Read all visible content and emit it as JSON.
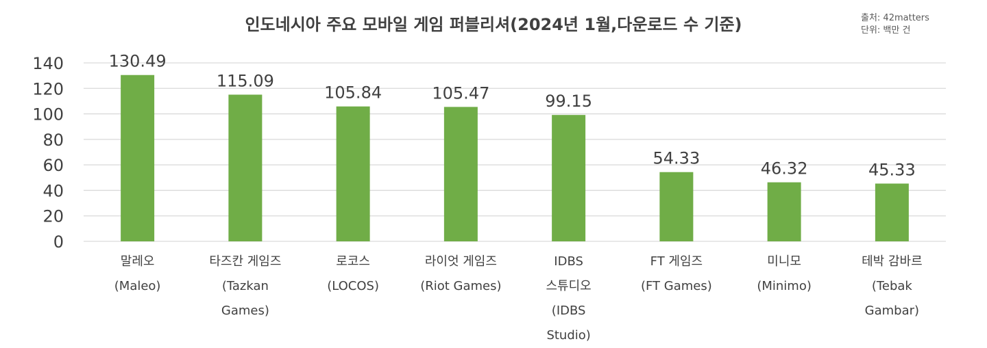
{
  "chart_data": {
    "type": "bar",
    "title": "인도네시아 주요 모바일 게임 퍼블리셔(2024년 1월,다운로드 수 기준)",
    "source_note": [
      "출처: 42matters",
      "단위: 백만 건"
    ],
    "categories": [
      [
        "말레오",
        "(Maleo)"
      ],
      [
        "타즈칸 게임즈",
        "(Tazkan",
        "Games)"
      ],
      [
        "로코스",
        "(LOCOS)"
      ],
      [
        "라이엇 게임즈",
        "(Riot Games)"
      ],
      [
        "IDBS",
        "스튜디오",
        "(IDBS",
        "Studio)"
      ],
      [
        "FT 게임즈",
        "(FT Games)"
      ],
      [
        "미니모",
        "(Minimo)"
      ],
      [
        "테박 감바르",
        "(Tebak",
        "Gambar)"
      ]
    ],
    "values": [
      130.49,
      115.09,
      105.84,
      105.47,
      99.15,
      54.33,
      46.32,
      45.33
    ],
    "value_labels": [
      "130.49",
      "115.09",
      "105.84",
      "105.47",
      "99.15",
      "54.33",
      "46.32",
      "45.33"
    ],
    "y_ticks": [
      "0",
      "20",
      "40",
      "60",
      "80",
      "100",
      "120",
      "140"
    ],
    "ylim": [
      0,
      140
    ],
    "grid": true,
    "bar_color": "#70AD47",
    "grid_color": "#D9D9D9"
  }
}
